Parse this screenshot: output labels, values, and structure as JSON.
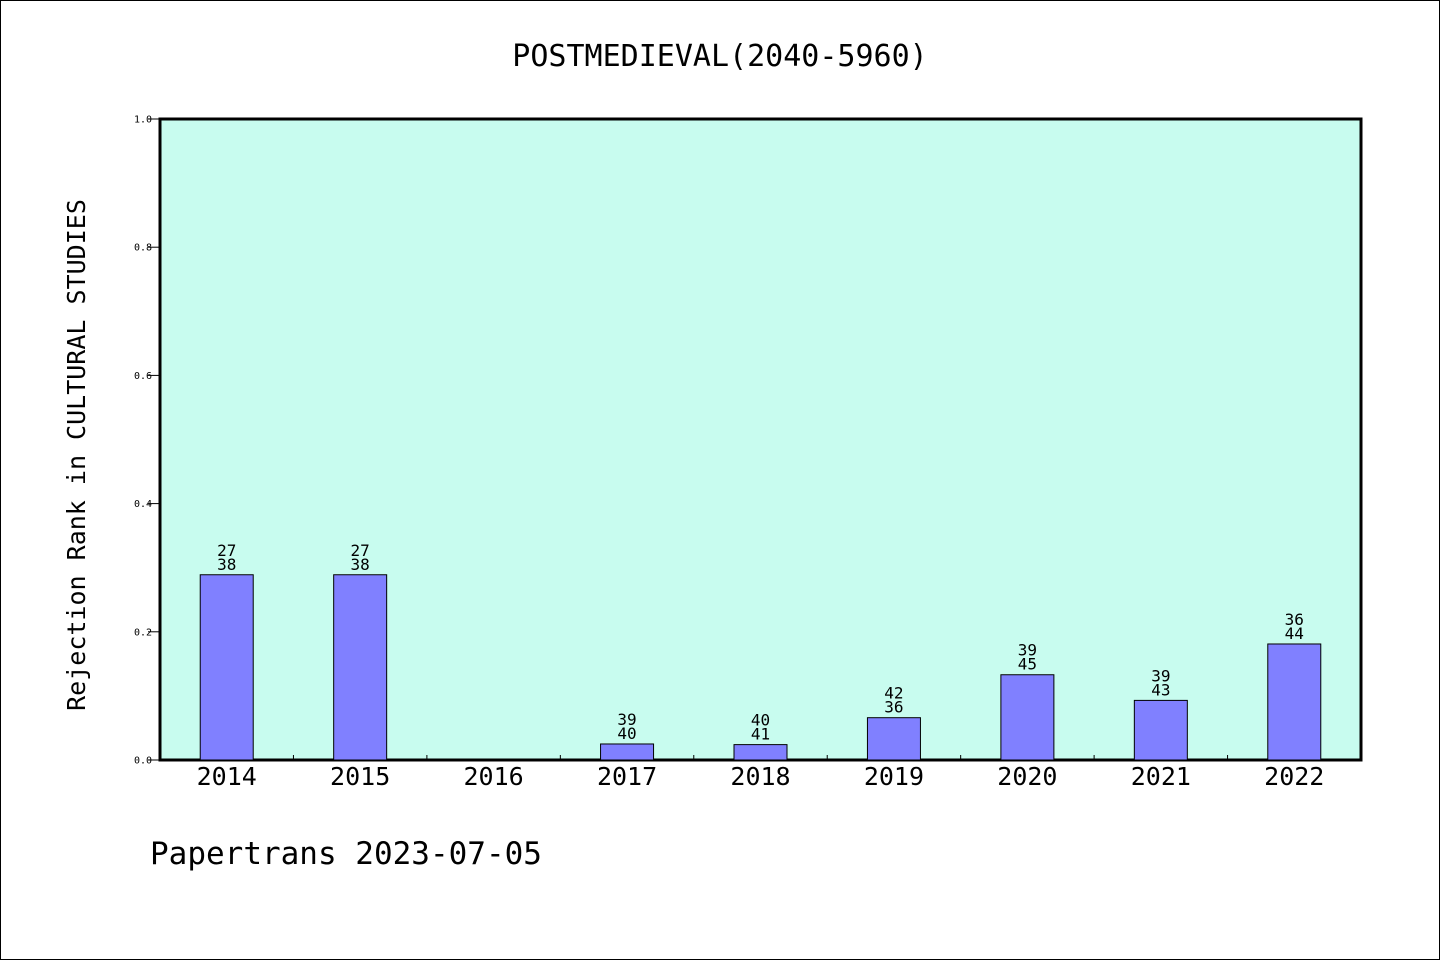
{
  "chart_data": {
    "type": "bar",
    "title": "POSTMEDIEVAL(2040-5960)",
    "ylabel": "Rejection Rank in CULTURAL STUDIES",
    "xlabel": "",
    "categories": [
      "2014",
      "2015",
      "2016",
      "2017",
      "2018",
      "2019",
      "2020",
      "2021",
      "2022"
    ],
    "values": [
      0.289,
      0.289,
      0,
      0.025,
      0.024,
      0.066,
      0.133,
      0.093,
      0.181
    ],
    "labels_top": [
      "27",
      "27",
      "",
      "39",
      "40",
      "42",
      "39",
      "39",
      "36"
    ],
    "labels_bottom": [
      "38",
      "38",
      "",
      "40",
      "41",
      "36",
      "45",
      "43",
      "44"
    ],
    "ylim": [
      0,
      1.0
    ],
    "yticks": [
      "0.0",
      "0.2",
      "0.4",
      "0.6",
      "0.8",
      "1.0"
    ],
    "grid": false,
    "colors": {
      "plot_background": "#c8fcef",
      "bar_fill": "#8080ff",
      "bar_edge": "#000000"
    }
  },
  "footer": "Papertrans 2023-07-05"
}
